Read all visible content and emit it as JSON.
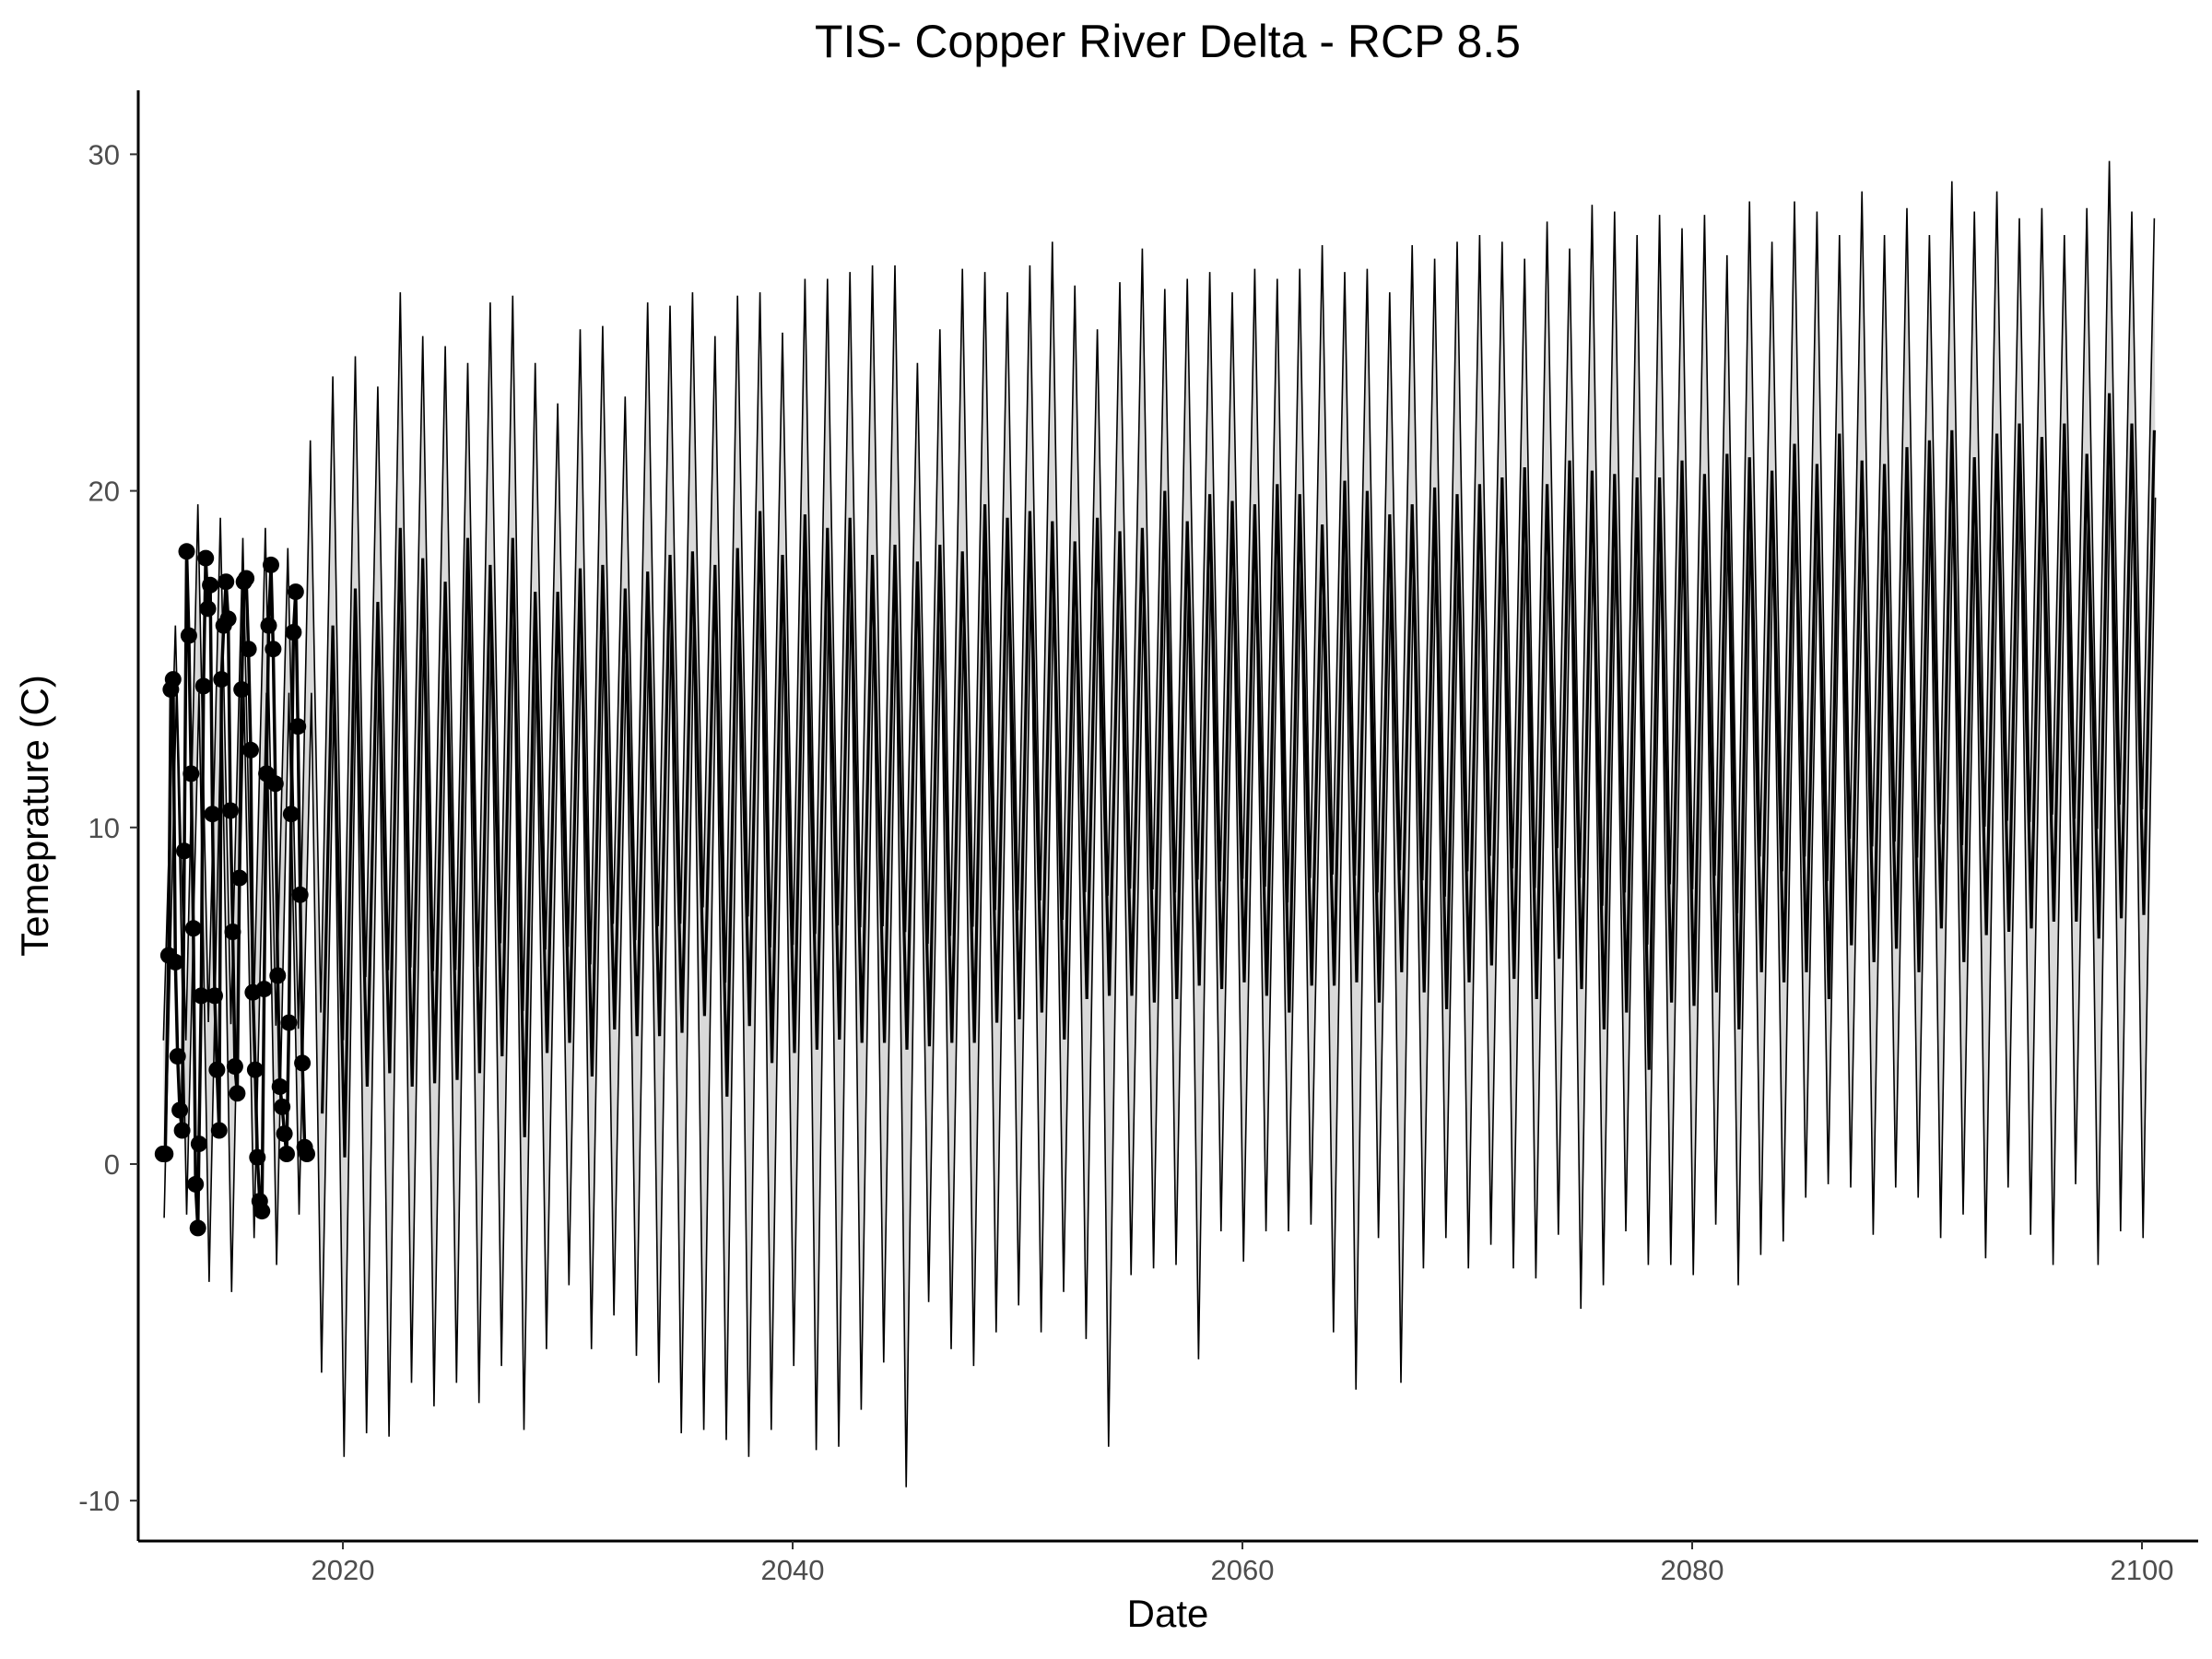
{
  "chart_data": {
    "type": "line",
    "title": "TIS- Copper River Delta - RCP 8.5",
    "xlabel": "Date",
    "ylabel": "Temeprature (C)",
    "xlim": [
      2010.9,
      2102.5
    ],
    "ylim": [
      -11.2,
      31.9
    ],
    "x_ticks": [
      2020,
      2040,
      2060,
      2080,
      2100
    ],
    "y_ticks": [
      -10,
      0,
      10,
      20,
      30
    ],
    "grid": false,
    "legend": "none",
    "colors": {
      "line": "#000000",
      "ribbon_fill": "#d9d9d9",
      "points": "#000000"
    },
    "series": [
      {
        "style": "ribbon",
        "note_x": "annual cycle, one upper and one lower envelope value per year",
        "years": [
          2012,
          2013,
          2014,
          2015,
          2016,
          2017,
          2018,
          2019,
          2020,
          2021,
          2022,
          2023,
          2024,
          2025,
          2026,
          2027,
          2028,
          2029,
          2030,
          2031,
          2032,
          2033,
          2034,
          2035,
          2036,
          2037,
          2038,
          2039,
          2040,
          2041,
          2042,
          2043,
          2044,
          2045,
          2046,
          2047,
          2048,
          2049,
          2050,
          2051,
          2052,
          2053,
          2054,
          2055,
          2056,
          2057,
          2058,
          2059,
          2060,
          2061,
          2062,
          2063,
          2064,
          2065,
          2066,
          2067,
          2068,
          2069,
          2070,
          2071,
          2072,
          2073,
          2074,
          2075,
          2076,
          2077,
          2078,
          2079,
          2080,
          2081,
          2082,
          2083,
          2084,
          2085,
          2086,
          2087,
          2088,
          2089,
          2090,
          2091,
          2092,
          2093,
          2094,
          2095,
          2096,
          2097,
          2098,
          2099,
          2100
        ],
        "upper": [
          16.0,
          19.6,
          19.2,
          18.6,
          18.9,
          18.3,
          21.5,
          23.4,
          24.0,
          23.1,
          25.9,
          24.6,
          24.3,
          23.8,
          25.6,
          25.8,
          23.8,
          22.6,
          24.8,
          24.9,
          22.8,
          25.6,
          25.5,
          25.9,
          24.6,
          25.8,
          25.9,
          24.7,
          26.3,
          26.3,
          26.5,
          26.7,
          26.7,
          23.8,
          24.8,
          26.6,
          26.5,
          25.9,
          26.7,
          27.4,
          26.1,
          24.8,
          26.2,
          27.2,
          26.0,
          26.3,
          26.5,
          25.9,
          26.6,
          26.3,
          26.6,
          27.3,
          26.5,
          26.6,
          25.9,
          27.3,
          26.9,
          27.4,
          27.6,
          27.4,
          26.9,
          28.0,
          27.2,
          28.5,
          28.3,
          27.6,
          28.2,
          27.8,
          28.2,
          27.0,
          28.6,
          27.4,
          28.6,
          28.3,
          27.6,
          28.9,
          27.6,
          28.4,
          27.6,
          29.2,
          28.3,
          28.9,
          28.1,
          28.4,
          27.6,
          28.4,
          29.8,
          28.3,
          28.1
        ],
        "lower": [
          -1.6,
          -1.5,
          -3.5,
          -3.8,
          -2.2,
          -3.0,
          -1.5,
          -6.2,
          -8.7,
          -8.0,
          -8.1,
          -6.5,
          -7.2,
          -6.5,
          -7.1,
          -6.0,
          -7.9,
          -5.5,
          -3.6,
          -5.5,
          -4.5,
          -5.7,
          -6.5,
          -8.0,
          -7.9,
          -8.2,
          -8.7,
          -7.9,
          -6.0,
          -8.5,
          -8.4,
          -7.3,
          -5.9,
          -9.6,
          -4.1,
          -5.5,
          -6.0,
          -5.0,
          -4.2,
          -5.0,
          -3.8,
          -5.2,
          -8.4,
          -3.3,
          -3.1,
          -3.0,
          -5.8,
          -2.0,
          -2.9,
          -2.0,
          -2.0,
          -1.8,
          -5.0,
          -6.7,
          -2.2,
          -6.5,
          -3.1,
          -2.2,
          -3.1,
          -2.4,
          -3.1,
          -3.4,
          -2.1,
          -4.3,
          -3.6,
          -2.0,
          -3.0,
          -3.0,
          -3.3,
          -1.8,
          -3.6,
          -2.7,
          -2.3,
          -1.0,
          -0.6,
          -0.7,
          -2.1,
          -0.7,
          -1.0,
          -2.2,
          -1.5,
          -2.8,
          -0.7,
          -2.1,
          -3.0,
          -0.6,
          -3.0,
          -2.0,
          -2.2
        ]
      },
      {
        "style": "line",
        "note_x": "annual cycle, one high and one low value per year",
        "years": [
          2019,
          2020,
          2021,
          2022,
          2023,
          2024,
          2025,
          2026,
          2027,
          2028,
          2029,
          2030,
          2031,
          2032,
          2033,
          2034,
          2035,
          2036,
          2037,
          2038,
          2039,
          2040,
          2041,
          2042,
          2043,
          2044,
          2045,
          2046,
          2047,
          2048,
          2049,
          2050,
          2051,
          2052,
          2053,
          2054,
          2055,
          2056,
          2057,
          2058,
          2059,
          2060,
          2061,
          2062,
          2063,
          2064,
          2065,
          2066,
          2067,
          2068,
          2069,
          2070,
          2071,
          2072,
          2073,
          2074,
          2075,
          2076,
          2077,
          2078,
          2079,
          2080,
          2081,
          2082,
          2083,
          2084,
          2085,
          2086,
          2087,
          2088,
          2089,
          2090,
          2091,
          2092,
          2093,
          2094,
          2095,
          2096,
          2097,
          2098,
          2099,
          2100
        ],
        "high": [
          16.0,
          17.1,
          16.7,
          18.9,
          18.0,
          17.3,
          18.6,
          17.8,
          18.6,
          17.0,
          17.0,
          17.7,
          17.8,
          17.1,
          17.6,
          18.1,
          18.2,
          17.8,
          18.3,
          19.4,
          18.1,
          19.3,
          18.9,
          19.2,
          18.1,
          18.4,
          17.9,
          18.4,
          18.2,
          19.6,
          19.2,
          19.4,
          19.1,
          18.5,
          19.2,
          18.8,
          18.9,
          20.0,
          19.1,
          19.9,
          19.7,
          19.6,
          20.2,
          19.9,
          19.0,
          20.3,
          20.0,
          19.3,
          19.6,
          20.1,
          19.9,
          20.2,
          20.4,
          20.7,
          20.2,
          20.9,
          20.6,
          20.5,
          20.4,
          20.4,
          20.9,
          20.5,
          21.1,
          21.0,
          20.6,
          21.4,
          20.8,
          21.7,
          20.9,
          20.8,
          21.3,
          21.5,
          21.8,
          21.0,
          21.7,
          22.0,
          21.6,
          22.0,
          21.1,
          22.9,
          22.0,
          21.8
        ],
        "low": [
          1.5,
          0.2,
          2.3,
          2.7,
          2.3,
          2.4,
          2.5,
          2.7,
          3.2,
          0.8,
          3.3,
          3.6,
          2.6,
          4.0,
          3.8,
          3.8,
          3.9,
          4.4,
          2.0,
          4.1,
          3.0,
          3.3,
          3.4,
          3.7,
          3.6,
          3.6,
          3.4,
          3.5,
          3.6,
          3.6,
          4.2,
          4.3,
          4.5,
          3.7,
          4.9,
          5.0,
          5.0,
          4.8,
          4.9,
          5.3,
          5.2,
          5.4,
          5.0,
          4.5,
          5.3,
          5.3,
          5.4,
          4.8,
          5.7,
          5.1,
          4.6,
          5.4,
          5.9,
          5.5,
          4.9,
          6.1,
          5.2,
          4.0,
          4.5,
          2.8,
          4.8,
          4.7,
          5.1,
          4.0,
          5.7,
          5.4,
          5.7,
          4.9,
          6.5,
          6.0,
          6.4,
          5.7,
          7.0,
          6.0,
          6.8,
          6.9,
          7.0,
          7.2,
          7.2,
          6.7,
          7.3,
          7.4
        ]
      },
      {
        "style": "line+points",
        "note_x": "observed values, decimal year",
        "x": [
          2012.0,
          2012.1,
          2012.25,
          2012.35,
          2012.45,
          2012.55,
          2012.65,
          2012.75,
          2012.85,
          2012.95,
          2013.05,
          2013.15,
          2013.25,
          2013.35,
          2013.45,
          2013.55,
          2013.6,
          2013.7,
          2013.8,
          2013.9,
          2014.0,
          2014.1,
          2014.2,
          2014.3,
          2014.4,
          2014.5,
          2014.6,
          2014.7,
          2014.8,
          2014.9,
          2015.0,
          2015.1,
          2015.2,
          2015.3,
          2015.4,
          2015.5,
          2015.6,
          2015.7,
          2015.8,
          2015.9,
          2016.0,
          2016.1,
          2016.2,
          2016.3,
          2016.4,
          2016.5,
          2016.6,
          2016.7,
          2016.8,
          2016.9,
          2017.0,
          2017.1,
          2017.2,
          2017.3,
          2017.4,
          2017.5,
          2017.6,
          2017.7,
          2017.8,
          2017.9,
          2018.0,
          2018.1,
          2018.2,
          2018.3,
          2018.4
        ],
        "y": [
          0.3,
          0.3,
          6.2,
          14.1,
          14.4,
          6.0,
          3.2,
          1.6,
          1.0,
          9.3,
          18.2,
          15.7,
          11.6,
          7.0,
          -0.6,
          -1.9,
          0.6,
          5.0,
          14.2,
          18.0,
          16.5,
          17.2,
          10.4,
          5.0,
          2.8,
          1.0,
          14.4,
          16.0,
          17.3,
          16.2,
          10.5,
          6.9,
          2.9,
          2.1,
          8.5,
          14.1,
          17.3,
          17.4,
          15.3,
          12.3,
          5.1,
          2.8,
          0.2,
          -1.1,
          -1.4,
          5.2,
          11.6,
          16.0,
          17.8,
          15.3,
          11.3,
          5.6,
          2.3,
          1.7,
          0.9,
          0.3,
          4.2,
          10.4,
          15.8,
          17.0,
          13.0,
          8.0,
          3.0,
          0.5,
          0.3
        ]
      }
    ]
  }
}
